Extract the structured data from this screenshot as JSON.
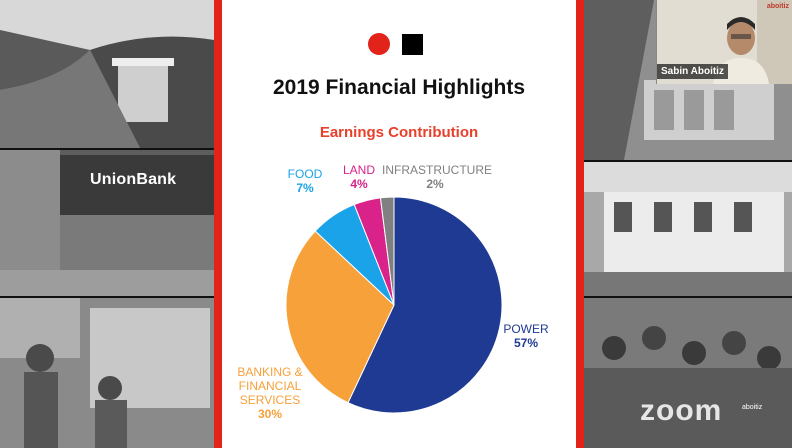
{
  "slide": {
    "title": "2019 Financial Highlights",
    "subtitle": "Earnings Contribution"
  },
  "chart_data": {
    "type": "pie",
    "title": "Earnings Contribution",
    "slices": [
      {
        "label": "POWER",
        "value": 57,
        "display": "57%",
        "color": "#1f3a93"
      },
      {
        "label": "BANKING & FINANCIAL SERVICES",
        "value": 30,
        "display": "30%",
        "color": "#f7a13a"
      },
      {
        "label": "FOOD",
        "value": 7,
        "display": "7%",
        "color": "#1aa3e8"
      },
      {
        "label": "LAND",
        "value": 4,
        "display": "4%",
        "color": "#d9238b"
      },
      {
        "label": "INFRASTRUCTURE",
        "value": 2,
        "display": "2%",
        "color": "#808080"
      }
    ]
  },
  "labels": {
    "food": {
      "name": "FOOD",
      "pct": "7%"
    },
    "land": {
      "name": "LAND",
      "pct": "4%"
    },
    "infra": {
      "name": "INFRASTRUCTURE",
      "pct": "2%"
    },
    "power": {
      "name": "POWER",
      "pct": "57%"
    },
    "banking": {
      "name": "BANKING &\nFINANCIAL\nSERVICES",
      "pct": "30%"
    }
  },
  "video": {
    "participant_name": "Sabin Aboitiz",
    "brand": "aboitiz"
  },
  "photo_text": {
    "unionbank_logo": "UnionBank",
    "zoom_watermark": "zoom",
    "aboitiz_watermark": "aboitiz"
  }
}
